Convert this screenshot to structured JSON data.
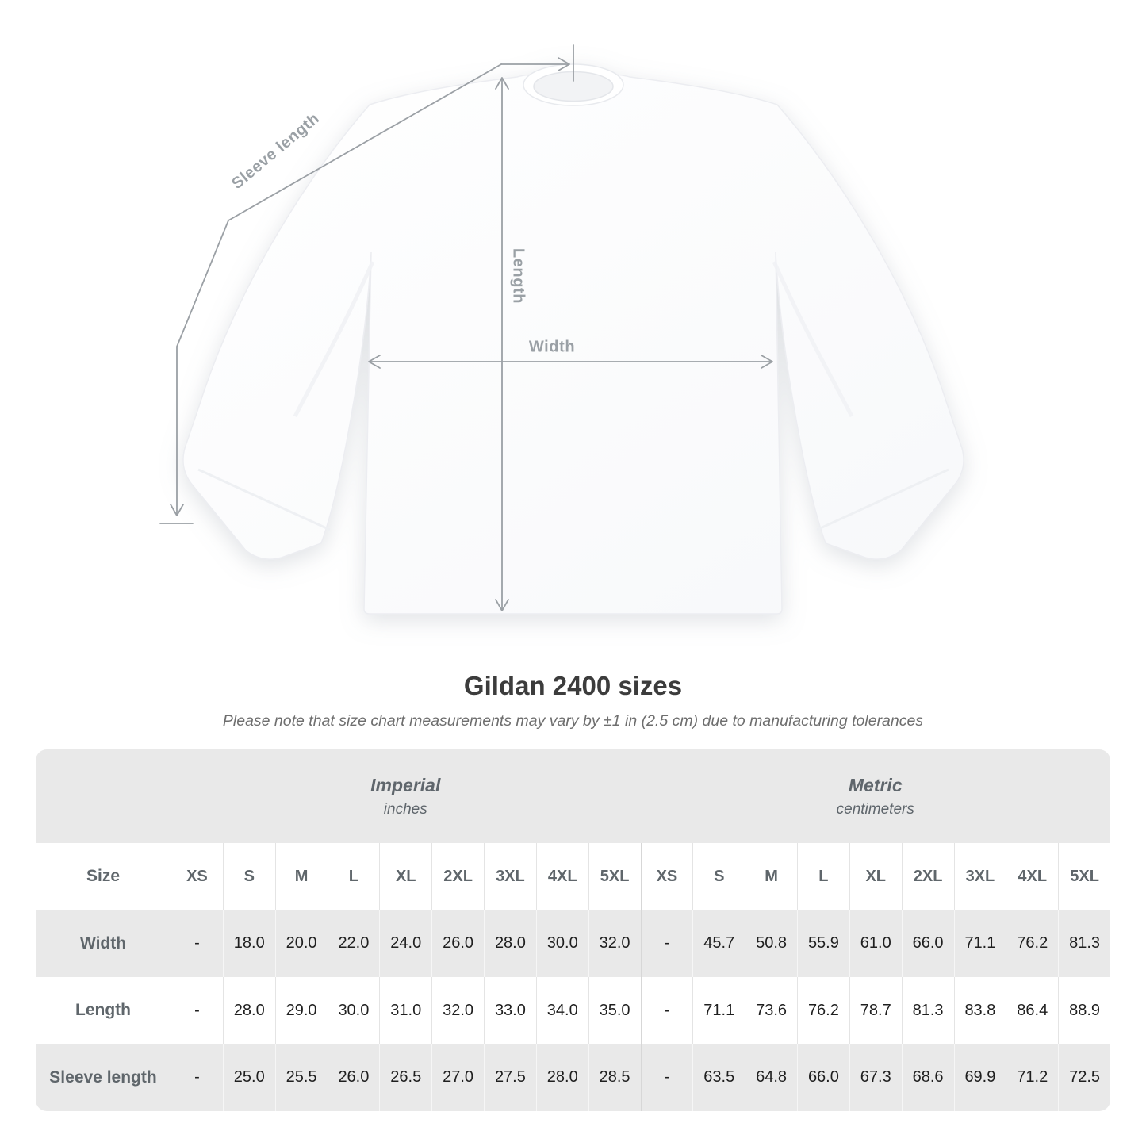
{
  "title": "Gildan 2400 sizes",
  "note": "Please note that size chart measurements may vary by ±1 in (2.5 cm) due to manufacturing tolerances",
  "diagram": {
    "labels": {
      "sleeve_length": "Sleeve length",
      "length": "Length",
      "width": "Width"
    },
    "line_color": "#9ba0a5",
    "label_color": "#9aa0a5",
    "shirt_color": "#fcfcfd"
  },
  "table": {
    "size_label": "Size",
    "unit_groups": [
      {
        "name": "Imperial",
        "unit": "inches"
      },
      {
        "name": "Metric",
        "unit": "centimeters"
      }
    ],
    "sizes": [
      "XS",
      "S",
      "M",
      "L",
      "XL",
      "2XL",
      "3XL",
      "4XL",
      "5XL"
    ],
    "rows": [
      {
        "label": "Width",
        "imperial": [
          "-",
          "18.0",
          "20.0",
          "22.0",
          "24.0",
          "26.0",
          "28.0",
          "30.0",
          "32.0"
        ],
        "metric": [
          "-",
          "45.7",
          "50.8",
          "55.9",
          "61.0",
          "66.0",
          "71.1",
          "76.2",
          "81.3"
        ]
      },
      {
        "label": "Length",
        "imperial": [
          "-",
          "28.0",
          "29.0",
          "30.0",
          "31.0",
          "32.0",
          "33.0",
          "34.0",
          "35.0"
        ],
        "metric": [
          "-",
          "71.1",
          "73.6",
          "76.2",
          "78.7",
          "81.3",
          "83.8",
          "86.4",
          "88.9"
        ]
      },
      {
        "label": "Sleeve length",
        "imperial": [
          "-",
          "25.0",
          "25.5",
          "26.0",
          "26.5",
          "27.0",
          "27.5",
          "28.0",
          "28.5"
        ],
        "metric": [
          "-",
          "63.5",
          "64.8",
          "66.0",
          "67.3",
          "68.6",
          "69.9",
          "71.2",
          "72.5"
        ]
      }
    ],
    "colors": {
      "band": "#e9e9e9",
      "row_gray": "#e9e9e9",
      "row_white": "#ffffff",
      "header_text": "#5f666b",
      "value_text": "#1f1f1f"
    }
  },
  "chart_data": {
    "type": "table",
    "title": "Gildan 2400 sizes",
    "note": "Please note that size chart measurements may vary by ±1 in (2.5 cm) due to manufacturing tolerances",
    "column_groups": [
      "Imperial (inches)",
      "Metric (centimeters)"
    ],
    "columns": [
      "Size",
      "XS",
      "S",
      "M",
      "L",
      "XL",
      "2XL",
      "3XL",
      "4XL",
      "5XL",
      "XS",
      "S",
      "M",
      "L",
      "XL",
      "2XL",
      "3XL",
      "4XL",
      "5XL"
    ],
    "rows": [
      [
        "Width",
        "-",
        "18.0",
        "20.0",
        "22.0",
        "24.0",
        "26.0",
        "28.0",
        "30.0",
        "32.0",
        "-",
        "45.7",
        "50.8",
        "55.9",
        "61.0",
        "66.0",
        "71.1",
        "76.2",
        "81.3"
      ],
      [
        "Length",
        "-",
        "28.0",
        "29.0",
        "30.0",
        "31.0",
        "32.0",
        "33.0",
        "34.0",
        "35.0",
        "-",
        "71.1",
        "73.6",
        "76.2",
        "78.7",
        "81.3",
        "83.8",
        "86.4",
        "88.9"
      ],
      [
        "Sleeve length",
        "-",
        "25.0",
        "25.5",
        "26.0",
        "26.5",
        "27.0",
        "27.5",
        "28.0",
        "28.5",
        "-",
        "63.5",
        "64.8",
        "66.0",
        "67.3",
        "68.6",
        "69.9",
        "71.2",
        "72.5"
      ]
    ]
  }
}
